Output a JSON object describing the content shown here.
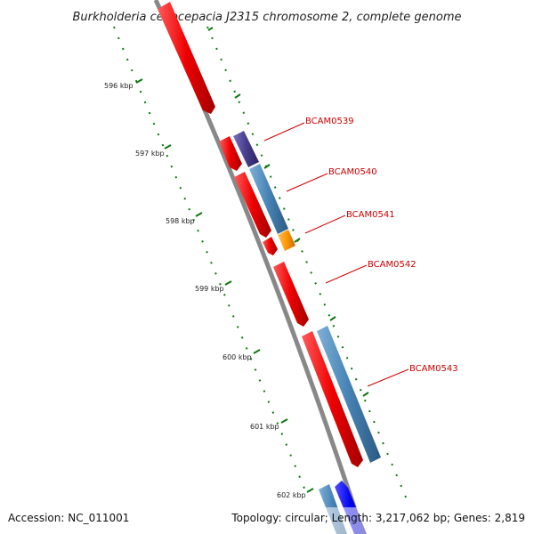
{
  "title": "Burkholderia cenocepacia J2315 chromosome 2, complete genome",
  "footer": {
    "accession": "Accession: NC_011001",
    "summary": "Topology: circular; Length: 3,217,062 bp; Genes: 2,819"
  },
  "scale_labels": [
    "596 kbp",
    "597 kbp",
    "598 kbp",
    "599 kbp",
    "600 kbp",
    "601 kbp",
    "602 kbp"
  ],
  "gene_labels": [
    "BCAM0539",
    "BCAM0540",
    "BCAM0541",
    "BCAM0542",
    "BCAM0543"
  ],
  "colors": {
    "backbone": "#888888",
    "red_gene": "#ee0000",
    "steelblue_gene": "#4682b4",
    "purple_gene": "#483d8b",
    "orange_gene": "#ff9900",
    "blue_gene": "#0000ee",
    "tick": "#117711",
    "label_line": "#cc0000"
  }
}
